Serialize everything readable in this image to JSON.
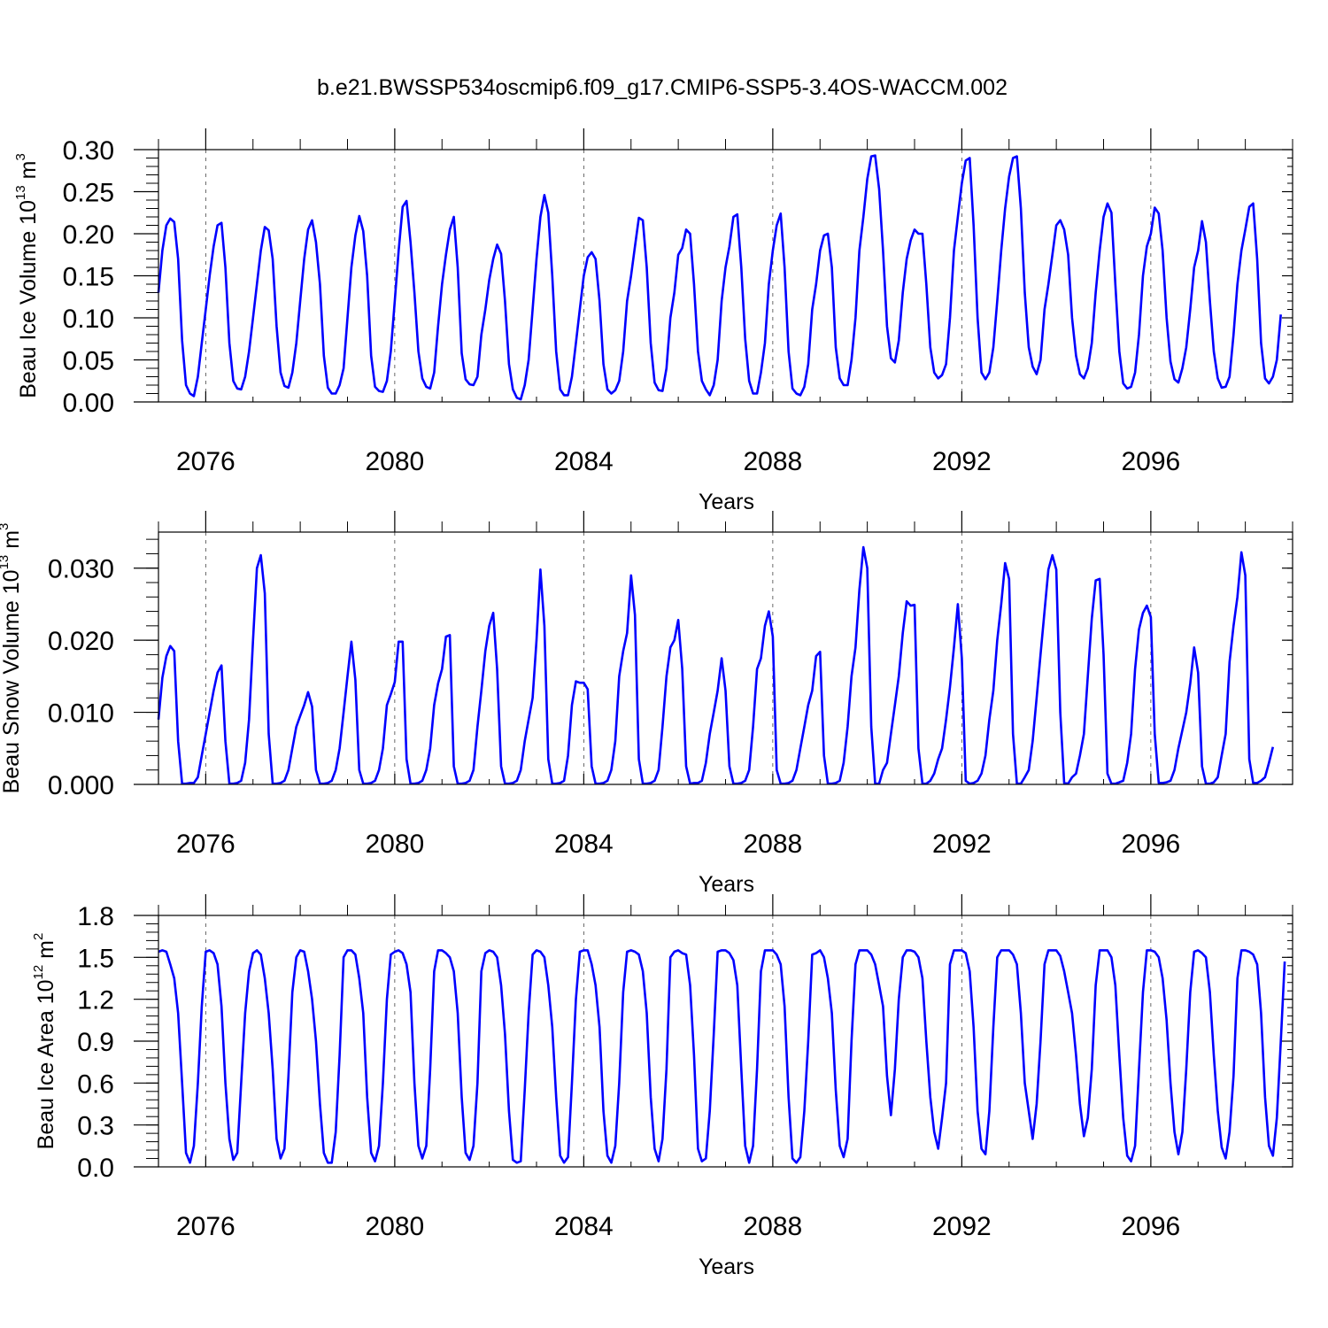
{
  "title": "b.e21.BWSSP534oscmip6.f09_g17.CMIP6-SSP5-3.4OS-WACCM.002",
  "chart_data": [
    {
      "type": "line",
      "title": "",
      "xlabel": "Years",
      "ylabel": "Beau Ice Volume 10",
      "ylabel_exp": "13",
      "ylabel_unit": " m",
      "ylabel_unit_exp": "3",
      "xlim": [
        2075,
        2099
      ],
      "ylim": [
        0,
        0.3
      ],
      "xticks": [
        "2076",
        "2080",
        "2084",
        "2088",
        "2092",
        "2096"
      ],
      "yticks": [
        "0.00",
        "0.05",
        "0.10",
        "0.15",
        "0.20",
        "0.25",
        "0.30"
      ],
      "line_color": "#0000ff",
      "series": [
        {
          "values": [
            0.13,
            0.18,
            0.21,
            0.218,
            0.214,
            0.17,
            0.073,
            0.02,
            0.01,
            0.007,
            0.03,
            0.07,
            0.11,
            0.15,
            0.185,
            0.21,
            0.213,
            0.16,
            0.07,
            0.025,
            0.016,
            0.015,
            0.03,
            0.06,
            0.1,
            0.14,
            0.18,
            0.208,
            0.204,
            0.17,
            0.09,
            0.035,
            0.019,
            0.017,
            0.035,
            0.07,
            0.12,
            0.17,
            0.205,
            0.216,
            0.19,
            0.14,
            0.055,
            0.017,
            0.01,
            0.01,
            0.02,
            0.04,
            0.1,
            0.16,
            0.198,
            0.221,
            0.203,
            0.15,
            0.055,
            0.018,
            0.013,
            0.012,
            0.025,
            0.06,
            0.12,
            0.18,
            0.232,
            0.239,
            0.19,
            0.13,
            0.06,
            0.028,
            0.018,
            0.016,
            0.035,
            0.09,
            0.14,
            0.175,
            0.205,
            0.22,
            0.16,
            0.058,
            0.027,
            0.021,
            0.02,
            0.03,
            0.08,
            0.11,
            0.145,
            0.17,
            0.187,
            0.176,
            0.12,
            0.045,
            0.015,
            0.005,
            0.003,
            0.02,
            0.05,
            0.11,
            0.17,
            0.22,
            0.246,
            0.225,
            0.15,
            0.06,
            0.015,
            0.008,
            0.008,
            0.03,
            0.07,
            0.11,
            0.15,
            0.172,
            0.178,
            0.17,
            0.12,
            0.045,
            0.015,
            0.01,
            0.014,
            0.025,
            0.06,
            0.12,
            0.15,
            0.185,
            0.219,
            0.216,
            0.16,
            0.07,
            0.023,
            0.014,
            0.013,
            0.04,
            0.1,
            0.13,
            0.175,
            0.183,
            0.205,
            0.2,
            0.14,
            0.06,
            0.025,
            0.015,
            0.008,
            0.02,
            0.05,
            0.12,
            0.16,
            0.185,
            0.22,
            0.223,
            0.16,
            0.075,
            0.025,
            0.01,
            0.01,
            0.035,
            0.07,
            0.14,
            0.18,
            0.21,
            0.224,
            0.16,
            0.06,
            0.016,
            0.01,
            0.008,
            0.018,
            0.045,
            0.11,
            0.14,
            0.18,
            0.198,
            0.2,
            0.16,
            0.065,
            0.028,
            0.02,
            0.02,
            0.05,
            0.1,
            0.18,
            0.22,
            0.265,
            0.292,
            0.293,
            0.253,
            0.18,
            0.09,
            0.052,
            0.047,
            0.073,
            0.13,
            0.17,
            0.192,
            0.205,
            0.2,
            0.2,
            0.14,
            0.065,
            0.035,
            0.028,
            0.032,
            0.045,
            0.1,
            0.18,
            0.22,
            0.26,
            0.287,
            0.29,
            0.21,
            0.1,
            0.035,
            0.027,
            0.035,
            0.065,
            0.12,
            0.18,
            0.23,
            0.268,
            0.29,
            0.292,
            0.23,
            0.13,
            0.065,
            0.042,
            0.033,
            0.05,
            0.11,
            0.14,
            0.175,
            0.21,
            0.216,
            0.205,
            0.175,
            0.1,
            0.055,
            0.033,
            0.028,
            0.04,
            0.07,
            0.13,
            0.18,
            0.22,
            0.236,
            0.225,
            0.14,
            0.06,
            0.022,
            0.016,
            0.018,
            0.035,
            0.08,
            0.15,
            0.185,
            0.2,
            0.231,
            0.224,
            0.18,
            0.1,
            0.048,
            0.027,
            0.023,
            0.04,
            0.065,
            0.11,
            0.16,
            0.18,
            0.215,
            0.19,
            0.12,
            0.06,
            0.028,
            0.017,
            0.018,
            0.03,
            0.08,
            0.14,
            0.18,
            0.205,
            0.232,
            0.236,
            0.17,
            0.07,
            0.028,
            0.022,
            0.03,
            0.05,
            0.104
          ]
        }
      ]
    },
    {
      "type": "line",
      "title": "",
      "xlabel": "Years",
      "ylabel": "Beau Snow Volume 10",
      "ylabel_exp": "13",
      "ylabel_unit": " m",
      "ylabel_unit_exp": "3",
      "xlim": [
        2075,
        2099
      ],
      "ylim": [
        0,
        0.035
      ],
      "xticks": [
        "2076",
        "2080",
        "2084",
        "2088",
        "2092",
        "2096"
      ],
      "yticks": [
        "0.000",
        "0.010",
        "0.020",
        "0.030"
      ],
      "line_color": "#0000ff",
      "series": [
        {
          "values": [
            0.009,
            0.0148,
            0.0178,
            0.0192,
            0.0185,
            0.006,
            0.0001,
            0.0001,
            0.0002,
            0.0002,
            0.001,
            0.004,
            0.007,
            0.01,
            0.013,
            0.0155,
            0.0165,
            0.006,
            0.0001,
            0.0001,
            0.0002,
            0.0005,
            0.003,
            0.009,
            0.02,
            0.03,
            0.0318,
            0.0265,
            0.007,
            0.0001,
            0.0001,
            0.0002,
            0.0005,
            0.002,
            0.005,
            0.008,
            0.0095,
            0.011,
            0.0128,
            0.0108,
            0.002,
            0.0001,
            0.0001,
            0.0002,
            0.0005,
            0.002,
            0.005,
            0.01,
            0.015,
            0.0198,
            0.0145,
            0.002,
            0.0001,
            0.0001,
            0.0002,
            0.0005,
            0.002,
            0.005,
            0.011,
            0.0125,
            0.0142,
            0.0198,
            0.0198,
            0.0035,
            0.0001,
            0.0001,
            0.0002,
            0.0005,
            0.002,
            0.005,
            0.011,
            0.014,
            0.016,
            0.0205,
            0.0207,
            0.0025,
            0.0001,
            0.0001,
            0.0002,
            0.0005,
            0.002,
            0.008,
            0.013,
            0.0185,
            0.022,
            0.0238,
            0.016,
            0.0025,
            0.0001,
            0.0001,
            0.0002,
            0.0005,
            0.002,
            0.006,
            0.009,
            0.012,
            0.02,
            0.0298,
            0.022,
            0.0035,
            0.0001,
            0.0001,
            0.0002,
            0.0005,
            0.004,
            0.011,
            0.0143,
            0.0141,
            0.0141,
            0.0132,
            0.0025,
            0.0001,
            0.0001,
            0.0002,
            0.0005,
            0.002,
            0.006,
            0.015,
            0.0185,
            0.021,
            0.029,
            0.0235,
            0.0035,
            0.0001,
            0.0001,
            0.0002,
            0.0005,
            0.002,
            0.008,
            0.015,
            0.019,
            0.02,
            0.0228,
            0.016,
            0.0025,
            0.0001,
            0.0002,
            0.0002,
            0.0005,
            0.003,
            0.007,
            0.01,
            0.013,
            0.0175,
            0.013,
            0.0025,
            0.0001,
            0.0001,
            0.0002,
            0.0005,
            0.002,
            0.008,
            0.016,
            0.0175,
            0.022,
            0.024,
            0.0205,
            0.002,
            0.0001,
            0.0001,
            0.0002,
            0.0005,
            0.002,
            0.005,
            0.008,
            0.011,
            0.013,
            0.0178,
            0.0184,
            0.004,
            0.0001,
            0.0001,
            0.0002,
            0.0005,
            0.003,
            0.008,
            0.015,
            0.019,
            0.027,
            0.0329,
            0.03,
            0.008,
            0.0001,
            0.0001,
            0.002,
            0.003,
            0.007,
            0.011,
            0.015,
            0.021,
            0.0254,
            0.0248,
            0.0249,
            0.005,
            0.0001,
            0.0001,
            0.0005,
            0.0015,
            0.0035,
            0.005,
            0.009,
            0.0135,
            0.019,
            0.025,
            0.0175,
            0.0005,
            0.0001,
            0.0002,
            0.0005,
            0.0015,
            0.004,
            0.009,
            0.013,
            0.02,
            0.025,
            0.0307,
            0.0285,
            0.007,
            0.0001,
            0.0001,
            0.001,
            0.002,
            0.006,
            0.012,
            0.018,
            0.024,
            0.0298,
            0.0318,
            0.0298,
            0.01,
            0.0002,
            0.0001,
            0.001,
            0.0015,
            0.004,
            0.007,
            0.015,
            0.023,
            0.0283,
            0.0285,
            0.018,
            0.0015,
            0.0001,
            0.0001,
            0.0003,
            0.0005,
            0.003,
            0.007,
            0.016,
            0.0215,
            0.0238,
            0.0248,
            0.0232,
            0.007,
            0.0002,
            0.0002,
            0.0003,
            0.0005,
            0.002,
            0.005,
            0.0075,
            0.01,
            0.014,
            0.019,
            0.0155,
            0.0025,
            0.0001,
            0.0001,
            0.0003,
            0.001,
            0.004,
            0.007,
            0.017,
            0.022,
            0.026,
            0.0322,
            0.029,
            0.0035,
            0.0002,
            0.0002,
            0.0005,
            0.001,
            0.003,
            0.0052
          ]
        }
      ]
    },
    {
      "type": "line",
      "title": "",
      "xlabel": "Years",
      "ylabel": "Beau Ice Area 10",
      "ylabel_exp": "12",
      "ylabel_unit": " m",
      "ylabel_unit_exp": "2",
      "xlim": [
        2075,
        2099
      ],
      "ylim": [
        0,
        1.8
      ],
      "xticks": [
        "2076",
        "2080",
        "2084",
        "2088",
        "2092",
        "2096"
      ],
      "yticks": [
        "0.0",
        "0.3",
        "0.6",
        "0.9",
        "1.2",
        "1.5",
        "1.8"
      ],
      "line_color": "#0000ff",
      "series": [
        {
          "values": [
            1.54,
            1.55,
            1.54,
            1.45,
            1.35,
            1.1,
            0.6,
            0.1,
            0.03,
            0.15,
            0.6,
            1.15,
            1.54,
            1.55,
            1.53,
            1.45,
            1.15,
            0.6,
            0.2,
            0.05,
            0.1,
            0.6,
            1.1,
            1.4,
            1.53,
            1.55,
            1.52,
            1.35,
            1.1,
            0.7,
            0.2,
            0.06,
            0.13,
            0.65,
            1.25,
            1.5,
            1.55,
            1.54,
            1.4,
            1.2,
            0.9,
            0.45,
            0.1,
            0.03,
            0.03,
            0.25,
            0.8,
            1.5,
            1.55,
            1.55,
            1.52,
            1.35,
            1.1,
            0.5,
            0.1,
            0.04,
            0.15,
            0.6,
            1.2,
            1.52,
            1.54,
            1.55,
            1.53,
            1.45,
            1.25,
            0.6,
            0.15,
            0.06,
            0.15,
            0.7,
            1.4,
            1.55,
            1.55,
            1.53,
            1.5,
            1.4,
            1.1,
            0.5,
            0.1,
            0.05,
            0.15,
            0.6,
            1.4,
            1.53,
            1.55,
            1.54,
            1.5,
            1.3,
            0.95,
            0.4,
            0.05,
            0.03,
            0.04,
            0.55,
            1.1,
            1.52,
            1.55,
            1.54,
            1.5,
            1.3,
            1.0,
            0.5,
            0.08,
            0.03,
            0.07,
            0.6,
            1.2,
            1.54,
            1.55,
            1.55,
            1.45,
            1.3,
            1.0,
            0.4,
            0.08,
            0.03,
            0.15,
            0.6,
            1.25,
            1.54,
            1.55,
            1.54,
            1.52,
            1.4,
            1.1,
            0.5,
            0.13,
            0.04,
            0.2,
            0.7,
            1.5,
            1.54,
            1.55,
            1.53,
            1.52,
            1.3,
            0.8,
            0.13,
            0.04,
            0.06,
            0.4,
            0.95,
            1.54,
            1.55,
            1.55,
            1.53,
            1.48,
            1.3,
            0.7,
            0.15,
            0.03,
            0.15,
            0.7,
            1.4,
            1.55,
            1.55,
            1.55,
            1.52,
            1.45,
            1.15,
            0.5,
            0.06,
            0.03,
            0.07,
            0.4,
            0.9,
            1.52,
            1.53,
            1.55,
            1.5,
            1.35,
            1.1,
            0.55,
            0.15,
            0.07,
            0.2,
            0.9,
            1.45,
            1.55,
            1.55,
            1.55,
            1.52,
            1.45,
            1.3,
            1.15,
            0.65,
            0.37,
            0.7,
            1.2,
            1.5,
            1.55,
            1.55,
            1.54,
            1.5,
            1.35,
            0.9,
            0.5,
            0.25,
            0.13,
            0.35,
            0.6,
            1.45,
            1.55,
            1.55,
            1.55,
            1.53,
            1.4,
            1.0,
            0.4,
            0.13,
            0.09,
            0.4,
            1.0,
            1.5,
            1.55,
            1.55,
            1.55,
            1.52,
            1.45,
            1.1,
            0.6,
            0.4,
            0.2,
            0.45,
            0.9,
            1.45,
            1.55,
            1.55,
            1.55,
            1.51,
            1.4,
            1.25,
            1.1,
            0.8,
            0.45,
            0.22,
            0.35,
            0.7,
            1.3,
            1.55,
            1.55,
            1.55,
            1.5,
            1.3,
            0.8,
            0.35,
            0.08,
            0.04,
            0.15,
            0.7,
            1.25,
            1.55,
            1.55,
            1.54,
            1.5,
            1.35,
            1.05,
            0.6,
            0.25,
            0.09,
            0.25,
            0.7,
            1.25,
            1.54,
            1.55,
            1.53,
            1.5,
            1.25,
            0.8,
            0.4,
            0.14,
            0.06,
            0.25,
            0.65,
            1.35,
            1.55,
            1.55,
            1.54,
            1.52,
            1.45,
            1.1,
            0.5,
            0.15,
            0.08,
            0.35,
            0.9,
            1.47
          ]
        }
      ]
    }
  ]
}
